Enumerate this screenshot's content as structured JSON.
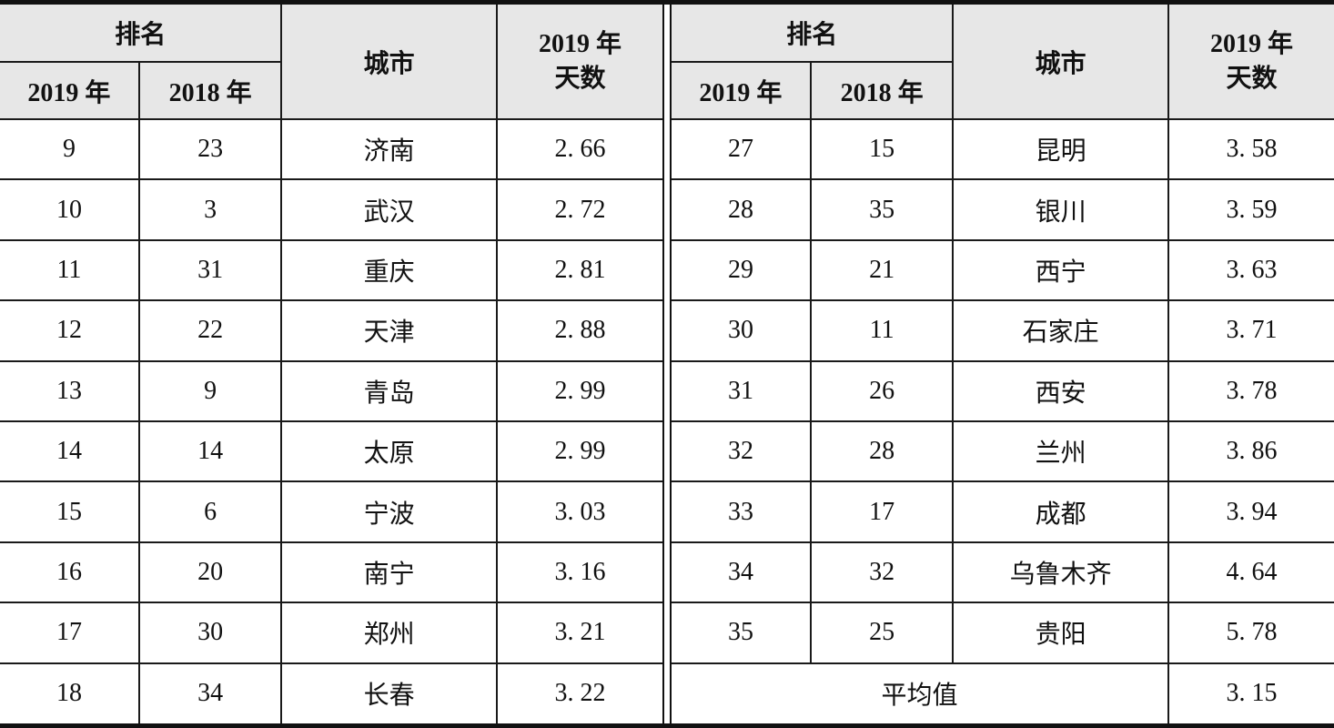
{
  "colors": {
    "header_bg": "#e7e7e7",
    "border": "#1a1a1a"
  },
  "tables": [
    {
      "header": {
        "rank": "排名",
        "year2019": "2019 年",
        "year2018": "2018 年",
        "city": "城市",
        "days_line1": "2019 年",
        "days_line2": "天数"
      },
      "rows": [
        [
          "9",
          "23",
          "济南",
          "2. 66"
        ],
        [
          "10",
          "3",
          "武汉",
          "2. 72"
        ],
        [
          "11",
          "31",
          "重庆",
          "2. 81"
        ],
        [
          "12",
          "22",
          "天津",
          "2. 88"
        ],
        [
          "13",
          "9",
          "青岛",
          "2. 99"
        ],
        [
          "14",
          "14",
          "太原",
          "2. 99"
        ],
        [
          "15",
          "6",
          "宁波",
          "3. 03"
        ],
        [
          "16",
          "20",
          "南宁",
          "3. 16"
        ],
        [
          "17",
          "30",
          "郑州",
          "3. 21"
        ],
        [
          "18",
          "34",
          "长春",
          "3. 22"
        ]
      ]
    },
    {
      "header": {
        "rank": "排名",
        "year2019": "2019 年",
        "year2018": "2018 年",
        "city": "城市",
        "days_line1": "2019 年",
        "days_line2": "天数"
      },
      "rows": [
        [
          "27",
          "15",
          "昆明",
          "3. 58"
        ],
        [
          "28",
          "35",
          "银川",
          "3. 59"
        ],
        [
          "29",
          "21",
          "西宁",
          "3. 63"
        ],
        [
          "30",
          "11",
          "石家庄",
          "3. 71"
        ],
        [
          "31",
          "26",
          "西安",
          "3. 78"
        ],
        [
          "32",
          "28",
          "兰州",
          "3. 86"
        ],
        [
          "33",
          "17",
          "成都",
          "3. 94"
        ],
        [
          "34",
          "32",
          "乌鲁木齐",
          "4. 64"
        ],
        [
          "35",
          "25",
          "贵阳",
          "5. 78"
        ]
      ],
      "footer": {
        "label": "平均值",
        "value": "3. 15"
      }
    }
  ]
}
